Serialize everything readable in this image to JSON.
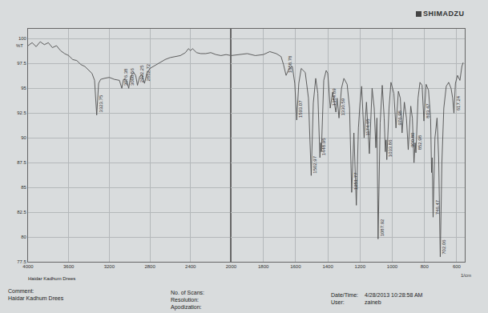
{
  "header": {
    "logo": "SHIMADZU"
  },
  "chart_data": [
    {
      "type": "line",
      "y_label": "%T",
      "grid": true,
      "xlim": [
        4000,
        2000
      ],
      "xticks": [
        4000,
        3600,
        3200,
        2800,
        2400,
        2000
      ],
      "ylim": [
        77.5,
        101
      ],
      "yticks": [
        77.5,
        80,
        82.5,
        85,
        87.5,
        90,
        92.5,
        95,
        97.5,
        100
      ],
      "color": "#505050",
      "x": [
        4000,
        3960,
        3920,
        3880,
        3840,
        3800,
        3760,
        3720,
        3680,
        3640,
        3600,
        3560,
        3520,
        3480,
        3440,
        3400,
        3370,
        3345,
        3323.75,
        3305,
        3285,
        3250,
        3200,
        3150,
        3100,
        3076.38,
        3060,
        3030,
        3008.56,
        2990,
        2960,
        2940,
        2922.25,
        2900,
        2880,
        2852.72,
        2830,
        2800,
        2750,
        2700,
        2650,
        2600,
        2550,
        2500,
        2450,
        2420,
        2400,
        2380,
        2340,
        2300,
        2250,
        2200,
        2150,
        2100,
        2050,
        2000
      ],
      "values": [
        99.3,
        99.6,
        99.2,
        99.7,
        99.4,
        99.6,
        99.1,
        99.3,
        98.8,
        98.5,
        98.3,
        97.9,
        97.8,
        97.4,
        97.2,
        96.8,
        96.5,
        95.8,
        92.3,
        95.5,
        95.9,
        96.0,
        96.1,
        95.9,
        95.8,
        95.0,
        95.9,
        95.8,
        95.0,
        96.2,
        96.6,
        96.3,
        95.3,
        96.2,
        96.4,
        95.5,
        96.5,
        97.0,
        97.3,
        97.6,
        97.9,
        98.1,
        98.2,
        98.3,
        98.6,
        99.0,
        98.8,
        99.0,
        98.6,
        98.5,
        98.5,
        98.6,
        98.4,
        98.3,
        98.4,
        98.3
      ],
      "annotations": [
        {
          "x": 3323.75,
          "y": 92.3,
          "text": "3323.75"
        },
        {
          "x": 3076.38,
          "y": 95.0,
          "text": "3076.38"
        },
        {
          "x": 3008.56,
          "y": 95.0,
          "text": "3008.56"
        },
        {
          "x": 2922.25,
          "y": 95.3,
          "text": "2922.25"
        },
        {
          "x": 2852.72,
          "y": 95.5,
          "text": "2852.72"
        }
      ]
    },
    {
      "type": "line",
      "x_label": "1/cm",
      "grid": true,
      "tick_labels": "x",
      "xlim": [
        2000,
        550
      ],
      "xticks": [
        1800,
        1600,
        1400,
        1200,
        1000,
        800,
        600
      ],
      "ylim": [
        77.5,
        101
      ],
      "yticks": [
        77.5,
        80,
        82.5,
        85,
        87.5,
        90,
        92.5,
        95,
        97.5,
        100
      ],
      "color": "#505050",
      "x": [
        2000,
        1950,
        1900,
        1850,
        1800,
        1760,
        1720,
        1690,
        1675,
        1658.78,
        1640,
        1620,
        1605,
        1593.07,
        1580,
        1565,
        1540,
        1520,
        1502.97,
        1490,
        1475,
        1462,
        1448.95,
        1444,
        1440,
        1425,
        1410,
        1400,
        1384.89,
        1370,
        1350,
        1342,
        1330.59,
        1315,
        1300,
        1280,
        1265,
        1251.77,
        1238,
        1222.87,
        1210,
        1200,
        1190,
        1174.65,
        1160,
        1141.9,
        1125,
        1112,
        1102,
        1095,
        1087.92,
        1075,
        1062,
        1050,
        1043,
        1038,
        1033.86,
        1020,
        1008,
        990,
        976.98,
        962,
        950,
        939,
        925,
        912,
        900.8,
        885,
        875,
        865,
        858,
        852.98,
        840,
        828,
        815,
        803.47,
        790,
        775,
        762,
        756,
        752,
        746.47,
        735,
        722,
        712,
        702.06,
        692,
        680,
        665,
        650,
        635,
        625,
        617.24,
        608,
        595,
        580,
        568,
        560
      ],
      "values": [
        98.3,
        98.4,
        98.5,
        98.3,
        98.4,
        98.7,
        98.5,
        98.2,
        97.4,
        96.3,
        97.0,
        97.2,
        95.5,
        91.8,
        95.5,
        97.0,
        96.6,
        94.0,
        86.2,
        93.5,
        96.0,
        94.5,
        88.0,
        89.5,
        88.6,
        95.8,
        96.8,
        96.5,
        93.0,
        94.6,
        92.6,
        94.0,
        92.0,
        95.0,
        96.0,
        95.4,
        93.0,
        84.5,
        90.5,
        83.2,
        91.0,
        93.5,
        95.2,
        90.0,
        93.6,
        88.4,
        95.0,
        93.0,
        89.0,
        92.0,
        79.8,
        91.5,
        95.3,
        92.0,
        88.6,
        89.8,
        87.8,
        93.0,
        95.6,
        94.5,
        91.0,
        94.7,
        94.0,
        90.5,
        93.6,
        92.0,
        88.8,
        93.2,
        92.0,
        87.5,
        89.5,
        88.5,
        94.0,
        95.6,
        95.3,
        91.7,
        95.4,
        94.8,
        92.0,
        86.5,
        88.0,
        82.0,
        90.0,
        92.0,
        88.0,
        78.0,
        87.5,
        93.0,
        95.2,
        95.6,
        95.0,
        94.0,
        92.5,
        95.5,
        96.3,
        95.8,
        97.2,
        97.6
      ],
      "annotations": [
        {
          "x": 1658.78,
          "y": 96.3,
          "text": "1658.78"
        },
        {
          "x": 1593.07,
          "y": 91.8,
          "text": "1593.07"
        },
        {
          "x": 1502.97,
          "y": 86.2,
          "text": "1502.97"
        },
        {
          "x": 1448.95,
          "y": 88.0,
          "text": "1448.95"
        },
        {
          "x": 1384.89,
          "y": 93.0,
          "text": "1384.89"
        },
        {
          "x": 1330.59,
          "y": 92.0,
          "text": "1330.59"
        },
        {
          "x": 1251.77,
          "y": 84.5,
          "text": "1251.77"
        },
        {
          "x": 1174.65,
          "y": 90.0,
          "text": "1174.65"
        },
        {
          "x": 1087.92,
          "y": 79.8,
          "text": "1087.92"
        },
        {
          "x": 1033.86,
          "y": 87.8,
          "text": "1033.86"
        },
        {
          "x": 976.98,
          "y": 91.0,
          "text": "976.98"
        },
        {
          "x": 900.8,
          "y": 88.8,
          "text": "900.80"
        },
        {
          "x": 852.98,
          "y": 88.5,
          "text": "852.98"
        },
        {
          "x": 803.47,
          "y": 91.7,
          "text": "803.47"
        },
        {
          "x": 746.47,
          "y": 82.0,
          "text": "746.47"
        },
        {
          "x": 702.06,
          "y": 78.0,
          "text": "702.06"
        },
        {
          "x": 617.24,
          "y": 92.5,
          "text": "617.24"
        }
      ]
    }
  ],
  "footer": {
    "operator": "Haidar Kadhum Drees",
    "comment_label": "Comment:",
    "comment": "Haidar Kadhum Drees",
    "scans_label": "No. of Scans:",
    "resolution_label": "Resolution:",
    "apodization_label": "Apodization:",
    "datetime_label": "Date/Time:",
    "datetime": "4/28/2013 10:28:58 AM",
    "user_label": "User:",
    "user": "zaineb"
  }
}
